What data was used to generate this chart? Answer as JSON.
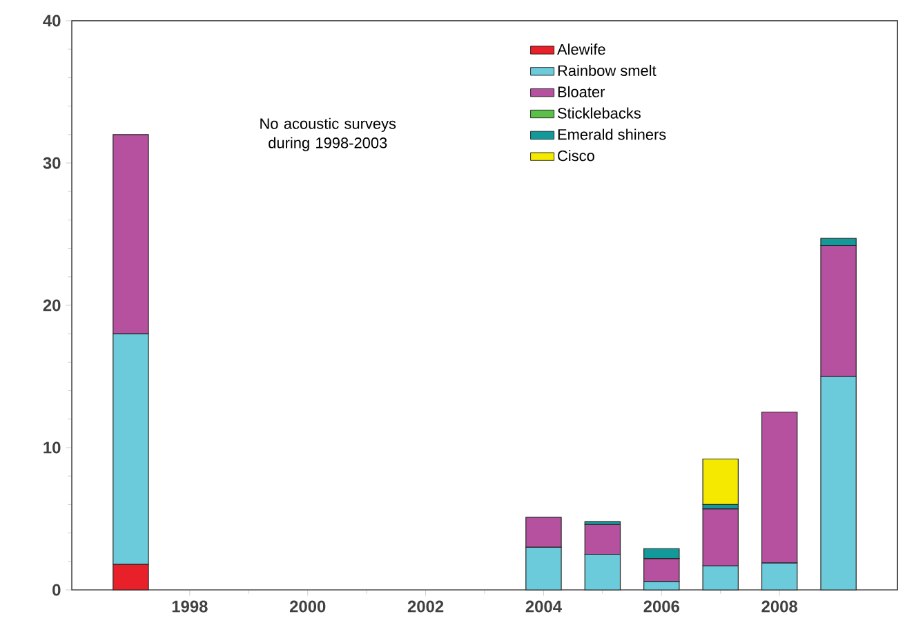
{
  "chart_data": {
    "type": "bar",
    "stacked": true,
    "x": [
      1997,
      2004,
      2005,
      2006,
      2007,
      2008,
      2009
    ],
    "series": [
      {
        "name": "Alewife",
        "color": "#e8202a",
        "values": [
          1.8,
          null,
          null,
          null,
          null,
          null,
          null
        ]
      },
      {
        "name": "Rainbow smelt",
        "color": "#6ccbdb",
        "values": [
          16.2,
          3.0,
          2.5,
          0.6,
          1.7,
          1.9,
          15.0
        ]
      },
      {
        "name": "Bloater",
        "color": "#b5519e",
        "values": [
          14.0,
          2.1,
          2.1,
          1.6,
          4.0,
          10.6,
          9.2
        ]
      },
      {
        "name": "Sticklebacks",
        "color": "#5cbf4a",
        "values": [
          null,
          null,
          null,
          null,
          null,
          null,
          null
        ]
      },
      {
        "name": "Emerald shiners",
        "color": "#129a9a",
        "values": [
          null,
          null,
          0.2,
          0.7,
          0.3,
          null,
          0.5
        ]
      },
      {
        "name": "Cisco",
        "color": "#f5e900",
        "values": [
          null,
          null,
          null,
          null,
          3.2,
          null,
          null
        ]
      }
    ],
    "xlim": [
      1996,
      2010
    ],
    "xticks": [
      1998,
      2000,
      2002,
      2004,
      2006,
      2008
    ],
    "ylim": [
      0,
      40
    ],
    "yticks": [
      0,
      10,
      20,
      30,
      40
    ],
    "legend": "top right",
    "grid": false,
    "annotations": [
      "No acoustic surveys during 1998-2003"
    ]
  }
}
